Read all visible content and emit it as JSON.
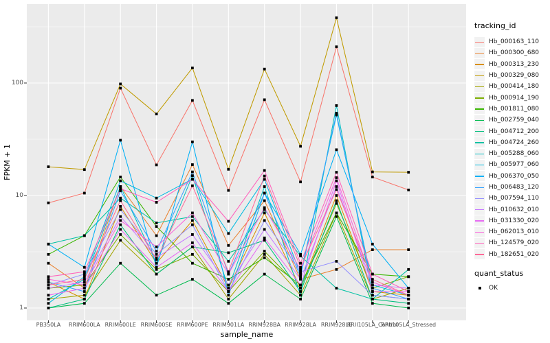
{
  "chart_data": {
    "type": "line",
    "title": "",
    "xlabel": "sample_name",
    "ylabel": "FPKM + 1",
    "y_scale": "log10",
    "ylim": [
      0.8,
      500
    ],
    "y_major_ticks": [
      "1",
      "10",
      "100"
    ],
    "y_major_values": [
      1,
      10,
      100
    ],
    "y_minor_values": [
      3.162,
      31.623,
      316.228
    ],
    "grid": "white major and minor on gray panel",
    "legend_position": "right",
    "legend_title": "tracking_id",
    "quant_legend": {
      "title": "quant_status",
      "items": [
        {
          "label": "OK",
          "marker": "black-square"
        }
      ]
    },
    "point_marker": "black-square",
    "categories": [
      "PB350LA",
      "RRIM600LA",
      "RRIM600LE",
      "RRIM600SE",
      "RRIM600PE",
      "RRIM901LA",
      "RRIM928BA",
      "RRIM928LA",
      "RRIM928LE",
      "RRII105LA_Control",
      "RRII105LA_Stressed"
    ],
    "series": [
      {
        "name": "Hb_000163_110",
        "color": "#F8766D",
        "values": [
          8.6,
          10.5,
          90,
          18.7,
          70,
          11.1,
          71,
          13.2,
          210,
          14.6,
          11.2
        ]
      },
      {
        "name": "Hb_000300_680",
        "color": "#EA8331",
        "values": [
          2.5,
          1.5,
          12,
          4.4,
          18.8,
          3.6,
          9,
          1.8,
          2.2,
          3.3,
          3.3
        ]
      },
      {
        "name": "Hb_000313_230",
        "color": "#D89000",
        "values": [
          1.7,
          1.2,
          8,
          2.5,
          6,
          1.5,
          7,
          1.5,
          10,
          1.4,
          1.3
        ]
      },
      {
        "name": "Hb_000329_080",
        "color": "#C09B00",
        "values": [
          18,
          17,
          98,
          53,
          136,
          17.1,
          133,
          27.4,
          380,
          16.2,
          16.1
        ]
      },
      {
        "name": "Hb_000414_180",
        "color": "#A3A500",
        "values": [
          1.2,
          1.3,
          4,
          2,
          3.5,
          1.2,
          3,
          1.3,
          7,
          1.2,
          1.5
        ]
      },
      {
        "name": "Hb_000914_190",
        "color": "#7CAE00",
        "values": [
          1.5,
          1.6,
          4.5,
          2.2,
          3,
          1.4,
          3.2,
          1.5,
          8.5,
          1.5,
          1.9
        ]
      },
      {
        "name": "Hb_001811_080",
        "color": "#39B600",
        "values": [
          3,
          4.4,
          14.6,
          5.3,
          2.5,
          1.8,
          2.8,
          1.6,
          7,
          2,
          1.9
        ]
      },
      {
        "name": "Hb_002759_040",
        "color": "#00BB4E",
        "values": [
          1,
          1.1,
          2.5,
          1.3,
          1.8,
          1.1,
          2,
          1.2,
          6.5,
          1.1,
          1
        ]
      },
      {
        "name": "Hb_004712_200",
        "color": "#00BF7D",
        "values": [
          1,
          1.2,
          5.5,
          2,
          3.5,
          3.1,
          4,
          1.4,
          9,
          1.2,
          1.1
        ]
      },
      {
        "name": "Hb_004724_260",
        "color": "#00C1A3",
        "values": [
          3.7,
          4.4,
          9.5,
          5.7,
          6.5,
          2.6,
          7.5,
          2.9,
          1.5,
          1.2,
          2.2
        ]
      },
      {
        "name": "Hb_005288_060",
        "color": "#00BFC4",
        "values": [
          1.2,
          1.8,
          12,
          2.5,
          15,
          1.5,
          12,
          1.3,
          63,
          1.3,
          1.2
        ]
      },
      {
        "name": "Hb_005977_060",
        "color": "#00BAE0",
        "values": [
          1.1,
          1.9,
          13.5,
          9.5,
          14,
          4.6,
          13.9,
          2,
          52,
          1.6,
          1.3
        ]
      },
      {
        "name": "Hb_006370_050",
        "color": "#00B0F6",
        "values": [
          3.7,
          2.3,
          31,
          2.3,
          30,
          1.3,
          10.5,
          3,
          25.5,
          3.7,
          1.5
        ]
      },
      {
        "name": "Hb_006483_120",
        "color": "#35A2FF",
        "values": [
          1.7,
          1.4,
          11,
          3.2,
          16.2,
          2,
          10.5,
          1.9,
          54,
          1.5,
          1.2
        ]
      },
      {
        "name": "Hb_007594_110",
        "color": "#9590FF",
        "values": [
          1.6,
          2,
          7.5,
          3,
          5.5,
          1.4,
          6,
          2.1,
          2.6,
          1.3,
          1.2
        ]
      },
      {
        "name": "Hb_010632_010",
        "color": "#C77CFF",
        "values": [
          1.5,
          1.7,
          6.5,
          2.8,
          4.5,
          1.6,
          5,
          1.8,
          12,
          1.6,
          1.5
        ]
      },
      {
        "name": "Hb_031330_020",
        "color": "#E76BF3",
        "values": [
          1.3,
          1.5,
          5,
          2.3,
          3.8,
          1.4,
          4.2,
          1.6,
          13.5,
          1.4,
          1.4
        ]
      },
      {
        "name": "Hb_062013_010",
        "color": "#FA62DB",
        "values": [
          1.8,
          1.6,
          6,
          3.5,
          7,
          2,
          7.8,
          2.2,
          14.4,
          1.7,
          1.3
        ]
      },
      {
        "name": "Hb_124579_020",
        "color": "#FF62BC",
        "values": [
          1.9,
          2.1,
          11.5,
          8.7,
          13.9,
          5.9,
          16.7,
          2.5,
          16.1,
          2,
          1.4
        ]
      },
      {
        "name": "Hb_182651_020",
        "color": "#FF6A98",
        "values": [
          1.6,
          1.8,
          9,
          2.7,
          12.2,
          2.1,
          14.9,
          2.3,
          11.3,
          1.8,
          1.3
        ]
      }
    ],
    "colors": {
      "panel_bg": "#EBEBEB",
      "grid": "#FFFFFF",
      "tick": "#333333",
      "tick_label": "#4D4D4D",
      "axis_title": "#000000",
      "point": "#000000",
      "legend_key_bg": "#F2F2F2"
    }
  }
}
